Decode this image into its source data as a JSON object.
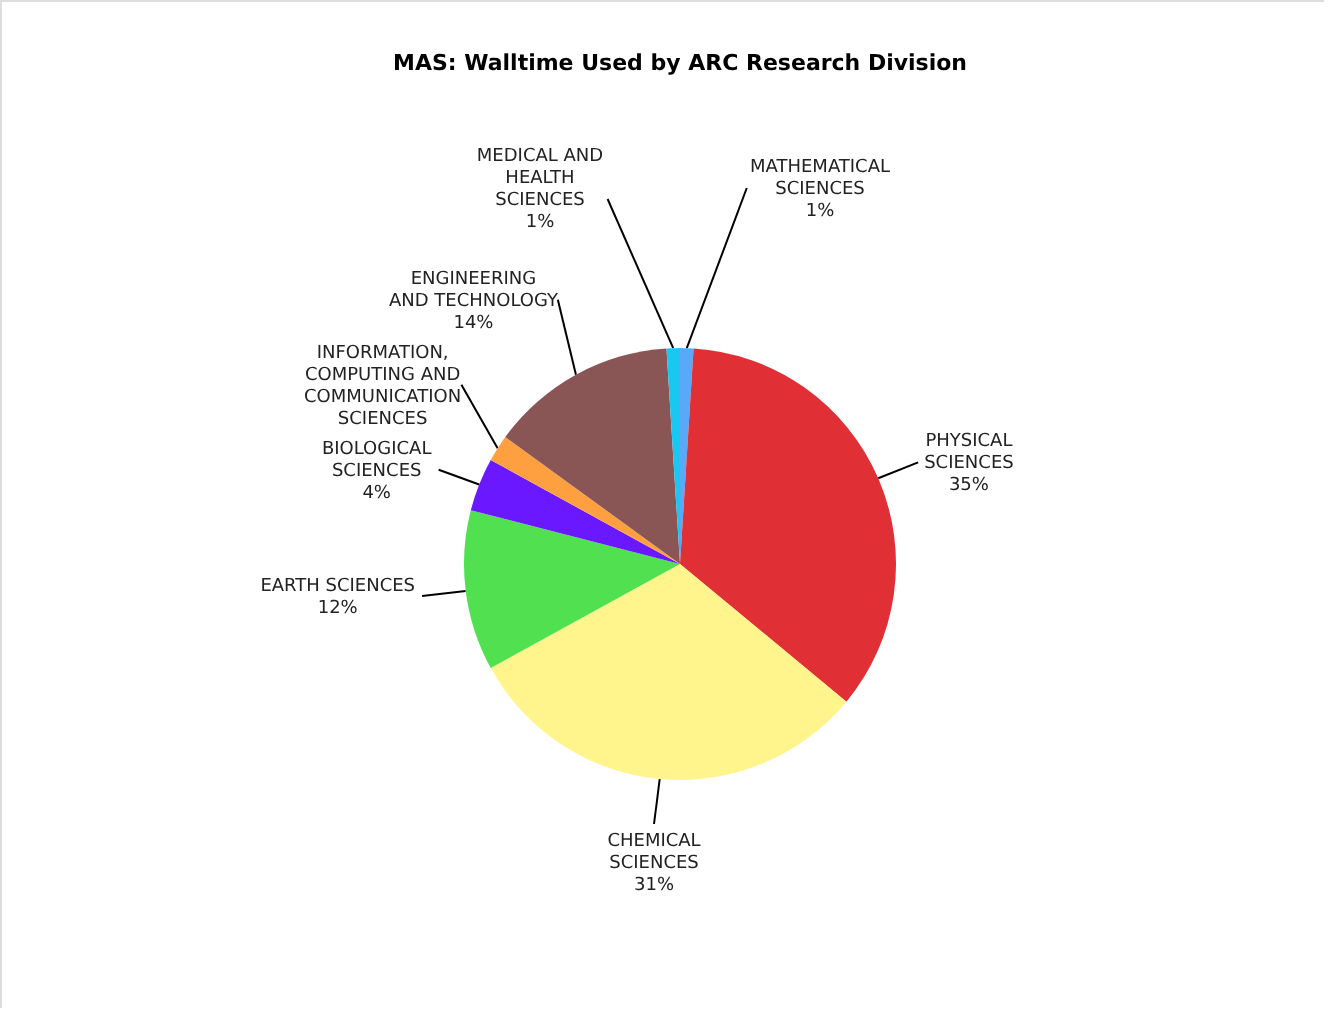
{
  "chart_data": {
    "type": "pie",
    "title": "MAS: Walltime Used by ARC Research Division",
    "categories": [
      "MATHEMATICAL SCIENCES",
      "PHYSICAL SCIENCES",
      "CHEMICAL SCIENCES",
      "EARTH SCIENCES",
      "BIOLOGICAL SCIENCES",
      "INFORMATION, COMPUTING AND COMMUNICATION SCIENCES",
      "ENGINEERING AND TECHNOLOGY",
      "MEDICAL AND HEALTH SCIENCES"
    ],
    "values": [
      1,
      35,
      31,
      12,
      4,
      2,
      14,
      1
    ],
    "value_labels": [
      "1%",
      "35%",
      "31%",
      "12%",
      "4%",
      null,
      "14%",
      "1%"
    ],
    "colors": [
      "#5aa8f8",
      "#e03036",
      "#fff58c",
      "#50e050",
      "#6a18ff",
      "#ffa040",
      "#8a5555",
      "#18c8f0"
    ]
  }
}
